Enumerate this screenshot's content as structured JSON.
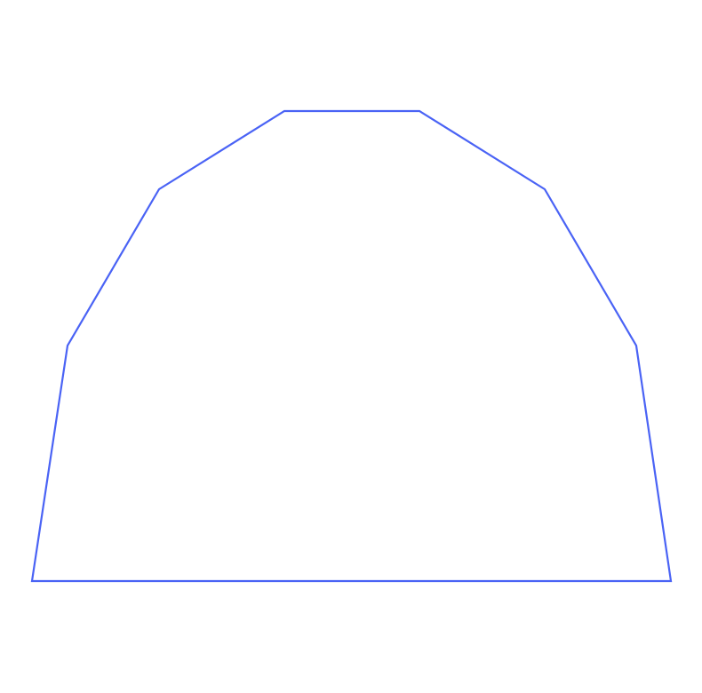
{
  "diagram": {
    "shape": "polygon",
    "vertex_count": 8,
    "stroke_color": "#4a63f5",
    "fill_color": "none",
    "background": "#ffffff"
  }
}
